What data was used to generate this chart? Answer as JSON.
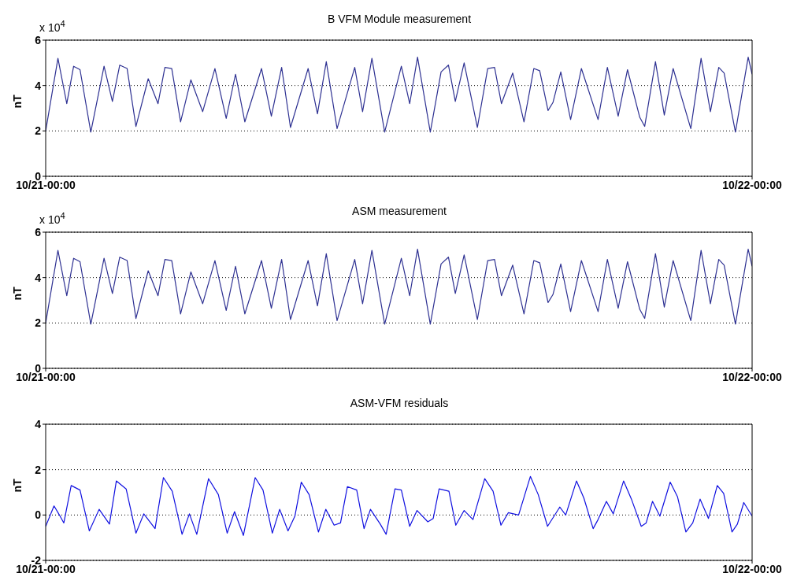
{
  "chart_data": [
    {
      "type": "line",
      "title": "B VFM Module measurement",
      "ylabel": "nT",
      "annotations": [
        "x 10$^{4}$"
      ],
      "xlim": [
        "--10-21T00:00",
        "--10-22T00:00"
      ],
      "xticks": [
        {
          "value": "--10-21T00:00",
          "label": "10/21-00:00"
        },
        {
          "value": "--10-22T00:00",
          "label": "10/22-00:00"
        }
      ],
      "ylim": [
        0,
        6
      ],
      "yticks": [
        0,
        2,
        4,
        6
      ],
      "grid": "y",
      "x": [
        "--10-21T00:00",
        "--10-21T00:25",
        "--10-21T00:43",
        "--10-21T00:57",
        "--10-21T01:10",
        "--10-21T01:32",
        "--10-21T01:59",
        "--10-21T02:16",
        "--10-21T02:31",
        "--10-21T02:46",
        "--10-21T03:04",
        "--10-21T03:29",
        "--10-21T03:49",
        "--10-21T04:03",
        "--10-21T04:17",
        "--10-21T04:35",
        "--10-21T04:56",
        "--10-21T05:20",
        "--10-21T05:45",
        "--10-21T06:08",
        "--10-21T06:27",
        "--10-21T06:46",
        "--10-21T07:20",
        "--10-21T07:40",
        "--10-21T08:01",
        "--10-21T08:19",
        "--10-21T08:55",
        "--10-21T09:14",
        "--10-21T09:32",
        "--10-21T09:54",
        "--10-21T10:30",
        "--10-21T10:46",
        "--10-21T11:05",
        "--10-21T11:31",
        "--10-21T12:05",
        "--10-21T12:22",
        "--10-21T12:38",
        "--10-21T13:04",
        "--10-21T13:26",
        "--10-21T13:41",
        "--10-21T13:55",
        "--10-21T14:13",
        "--10-21T14:40",
        "--10-21T15:01",
        "--10-21T15:15",
        "--10-21T15:29",
        "--10-21T15:52",
        "--10-21T16:15",
        "--10-21T16:35",
        "--10-21T16:47",
        "--10-21T17:04",
        "--10-21T17:14",
        "--10-21T17:30",
        "--10-21T17:50",
        "--10-21T18:12",
        "--10-21T18:46",
        "--10-21T19:05",
        "--10-21T19:27",
        "--10-21T19:46",
        "--10-21T20:11",
        "--10-21T20:21",
        "--10-21T20:43",
        "--10-21T21:01",
        "--10-21T21:19",
        "--10-21T21:55",
        "--10-21T22:16",
        "--10-21T22:35",
        "--10-21T22:52",
        "--10-21T23:03",
        "--10-21T23:26",
        "--10-21T23:52",
        "--10-22T00:00"
      ],
      "series": [
        {
          "color": "#2e3192",
          "values": [
            2.0,
            5.2,
            3.2,
            4.85,
            4.7,
            1.95,
            4.85,
            3.3,
            4.9,
            4.75,
            2.2,
            4.3,
            3.2,
            4.8,
            4.75,
            2.4,
            4.25,
            2.85,
            4.75,
            2.55,
            4.5,
            2.4,
            4.75,
            2.65,
            4.8,
            2.15,
            4.75,
            2.75,
            5.05,
            2.1,
            4.8,
            2.85,
            5.2,
            1.95,
            4.85,
            3.2,
            5.25,
            1.95,
            4.6,
            4.9,
            3.3,
            5.0,
            2.15,
            4.75,
            4.8,
            3.2,
            4.55,
            2.4,
            4.75,
            4.65,
            2.9,
            3.25,
            4.6,
            2.5,
            4.75,
            2.5,
            4.8,
            2.65,
            4.7,
            2.6,
            2.2,
            5.05,
            2.7,
            4.75,
            2.1,
            5.2,
            2.85,
            4.8,
            4.55,
            1.95,
            5.25,
            4.5
          ]
        }
      ]
    },
    {
      "type": "line",
      "title": "ASM measurement",
      "ylabel": "nT",
      "annotations": [
        "x 10$^{4}$"
      ],
      "xlim": [
        "--10-21T00:00",
        "--10-22T00:00"
      ],
      "xticks": [
        {
          "value": "--10-21T00:00",
          "label": "10/21-00:00"
        },
        {
          "value": "--10-22T00:00",
          "label": "10/22-00:00"
        }
      ],
      "ylim": [
        0,
        6
      ],
      "yticks": [
        0,
        2,
        4,
        6
      ],
      "grid": "y",
      "x": [
        "--10-21T00:00",
        "--10-21T00:25",
        "--10-21T00:43",
        "--10-21T00:57",
        "--10-21T01:10",
        "--10-21T01:32",
        "--10-21T01:59",
        "--10-21T02:16",
        "--10-21T02:31",
        "--10-21T02:46",
        "--10-21T03:04",
        "--10-21T03:29",
        "--10-21T03:49",
        "--10-21T04:03",
        "--10-21T04:17",
        "--10-21T04:35",
        "--10-21T04:56",
        "--10-21T05:20",
        "--10-21T05:45",
        "--10-21T06:08",
        "--10-21T06:27",
        "--10-21T06:46",
        "--10-21T07:20",
        "--10-21T07:40",
        "--10-21T08:01",
        "--10-21T08:19",
        "--10-21T08:55",
        "--10-21T09:14",
        "--10-21T09:32",
        "--10-21T09:54",
        "--10-21T10:30",
        "--10-21T10:46",
        "--10-21T11:05",
        "--10-21T11:31",
        "--10-21T12:05",
        "--10-21T12:22",
        "--10-21T12:38",
        "--10-21T13:04",
        "--10-21T13:26",
        "--10-21T13:41",
        "--10-21T13:55",
        "--10-21T14:13",
        "--10-21T14:40",
        "--10-21T15:01",
        "--10-21T15:15",
        "--10-21T15:29",
        "--10-21T15:52",
        "--10-21T16:15",
        "--10-21T16:35",
        "--10-21T16:47",
        "--10-21T17:04",
        "--10-21T17:14",
        "--10-21T17:30",
        "--10-21T17:50",
        "--10-21T18:12",
        "--10-21T18:46",
        "--10-21T19:05",
        "--10-21T19:27",
        "--10-21T19:46",
        "--10-21T20:11",
        "--10-21T20:21",
        "--10-21T20:43",
        "--10-21T21:01",
        "--10-21T21:19",
        "--10-21T21:55",
        "--10-21T22:16",
        "--10-21T22:35",
        "--10-21T22:52",
        "--10-21T23:03",
        "--10-21T23:26",
        "--10-21T23:52",
        "--10-22T00:00"
      ],
      "series": [
        {
          "color": "#2e3192",
          "values": [
            2.0,
            5.2,
            3.2,
            4.85,
            4.7,
            1.95,
            4.85,
            3.3,
            4.9,
            4.75,
            2.2,
            4.3,
            3.2,
            4.8,
            4.75,
            2.4,
            4.25,
            2.85,
            4.75,
            2.55,
            4.5,
            2.4,
            4.75,
            2.65,
            4.8,
            2.15,
            4.75,
            2.75,
            5.05,
            2.1,
            4.8,
            2.85,
            5.2,
            1.95,
            4.85,
            3.2,
            5.25,
            1.95,
            4.6,
            4.9,
            3.3,
            5.0,
            2.15,
            4.75,
            4.8,
            3.2,
            4.55,
            2.4,
            4.75,
            4.65,
            2.9,
            3.25,
            4.6,
            2.5,
            4.75,
            2.5,
            4.8,
            2.65,
            4.7,
            2.6,
            2.2,
            5.05,
            2.7,
            4.75,
            2.1,
            5.2,
            2.85,
            4.8,
            4.55,
            1.95,
            5.25,
            4.5
          ]
        }
      ]
    },
    {
      "type": "line",
      "title": "ASM-VFM residuals",
      "ylabel": "nT",
      "xlim": [
        "--10-21T00:00",
        "--10-22T00:00"
      ],
      "xticks": [
        {
          "value": "--10-21T00:00",
          "label": "10/21-00:00"
        },
        {
          "value": "--10-22T00:00",
          "label": "10/22-00:00"
        }
      ],
      "ylim": [
        -2,
        4
      ],
      "yticks": [
        -2,
        0,
        2,
        4
      ],
      "grid": "y",
      "x": [
        "--10-21T00:00",
        "--10-21T00:17",
        "--10-21T00:28",
        "--10-21T00:37",
        "--10-21T00:52",
        "--10-21T01:10",
        "--10-21T01:29",
        "--10-21T01:49",
        "--10-21T02:10",
        "--10-21T02:24",
        "--10-21T02:44",
        "--10-21T03:04",
        "--10-21T03:20",
        "--10-21T03:43",
        "--10-21T04:00",
        "--10-21T04:18",
        "--10-21T04:38",
        "--10-21T04:53",
        "--10-21T05:08",
        "--10-21T05:32",
        "--10-21T05:52",
        "--10-21T06:10",
        "--10-21T06:25",
        "--10-21T06:43",
        "--10-21T07:07",
        "--10-21T07:23",
        "--10-21T07:42",
        "--10-21T07:57",
        "--10-21T08:14",
        "--10-21T08:28",
        "--10-21T08:41",
        "--10-21T08:57",
        "--10-21T09:16",
        "--10-21T09:31",
        "--10-21T09:48",
        "--10-21T10:01",
        "--10-21T10:15",
        "--10-21T10:34",
        "--10-21T10:49",
        "--10-21T11:02",
        "--10-21T11:22",
        "--10-21T11:34",
        "--10-21T11:52",
        "--10-21T12:05",
        "--10-21T12:22",
        "--10-21T12:37",
        "--10-21T12:59",
        "--10-21T13:10",
        "--10-21T13:22",
        "--10-21T13:42",
        "--10-21T13:56",
        "--10-21T14:13",
        "--10-21T14:31",
        "--10-21T14:55",
        "--10-21T15:12",
        "--10-21T15:28",
        "--10-21T15:43",
        "--10-21T16:04",
        "--10-21T16:28",
        "--10-21T16:44",
        "--10-21T17:03",
        "--10-21T17:28",
        "--10-21T17:40",
        "--10-21T18:02",
        "--10-21T18:17",
        "--10-21T18:36",
        "--10-21T18:46",
        "--10-21T19:03",
        "--10-21T19:17",
        "--10-21T19:38",
        "--10-21T19:54",
        "--10-21T20:14",
        "--10-21T20:24",
        "--10-21T20:37",
        "--10-21T20:52",
        "--10-21T21:13",
        "--10-21T21:28",
        "--10-21T21:45",
        "--10-21T21:59",
        "--10-21T22:14",
        "--10-21T22:31",
        "--10-21T22:49",
        "--10-21T23:02",
        "--10-21T23:19",
        "--10-21T23:30",
        "--10-21T23:43",
        "--10-22T00:00"
      ],
      "series": [
        {
          "color": "#1010e0",
          "values": [
            -0.5,
            0.4,
            0.0,
            -0.35,
            1.3,
            1.1,
            -0.7,
            0.25,
            -0.4,
            1.5,
            1.15,
            -0.8,
            0.05,
            -0.6,
            1.65,
            1.05,
            -0.85,
            0.05,
            -0.85,
            1.6,
            0.9,
            -0.8,
            0.15,
            -0.9,
            1.65,
            1.1,
            -0.8,
            0.25,
            -0.7,
            -0.05,
            1.45,
            0.9,
            -0.75,
            0.25,
            -0.45,
            -0.35,
            1.25,
            1.1,
            -0.6,
            0.25,
            -0.4,
            -0.85,
            1.15,
            1.1,
            -0.5,
            0.2,
            -0.3,
            -0.15,
            1.15,
            1.05,
            -0.45,
            0.2,
            -0.2,
            1.6,
            1.05,
            -0.45,
            0.1,
            0.0,
            1.7,
            0.9,
            -0.5,
            0.35,
            0.0,
            1.5,
            0.75,
            -0.6,
            -0.2,
            0.6,
            0.05,
            1.5,
            0.7,
            -0.5,
            -0.35,
            0.6,
            -0.05,
            1.45,
            0.8,
            -0.75,
            -0.35,
            0.7,
            -0.15,
            1.3,
            0.95,
            -0.75,
            -0.4,
            0.55,
            -0.05
          ]
        }
      ]
    }
  ]
}
